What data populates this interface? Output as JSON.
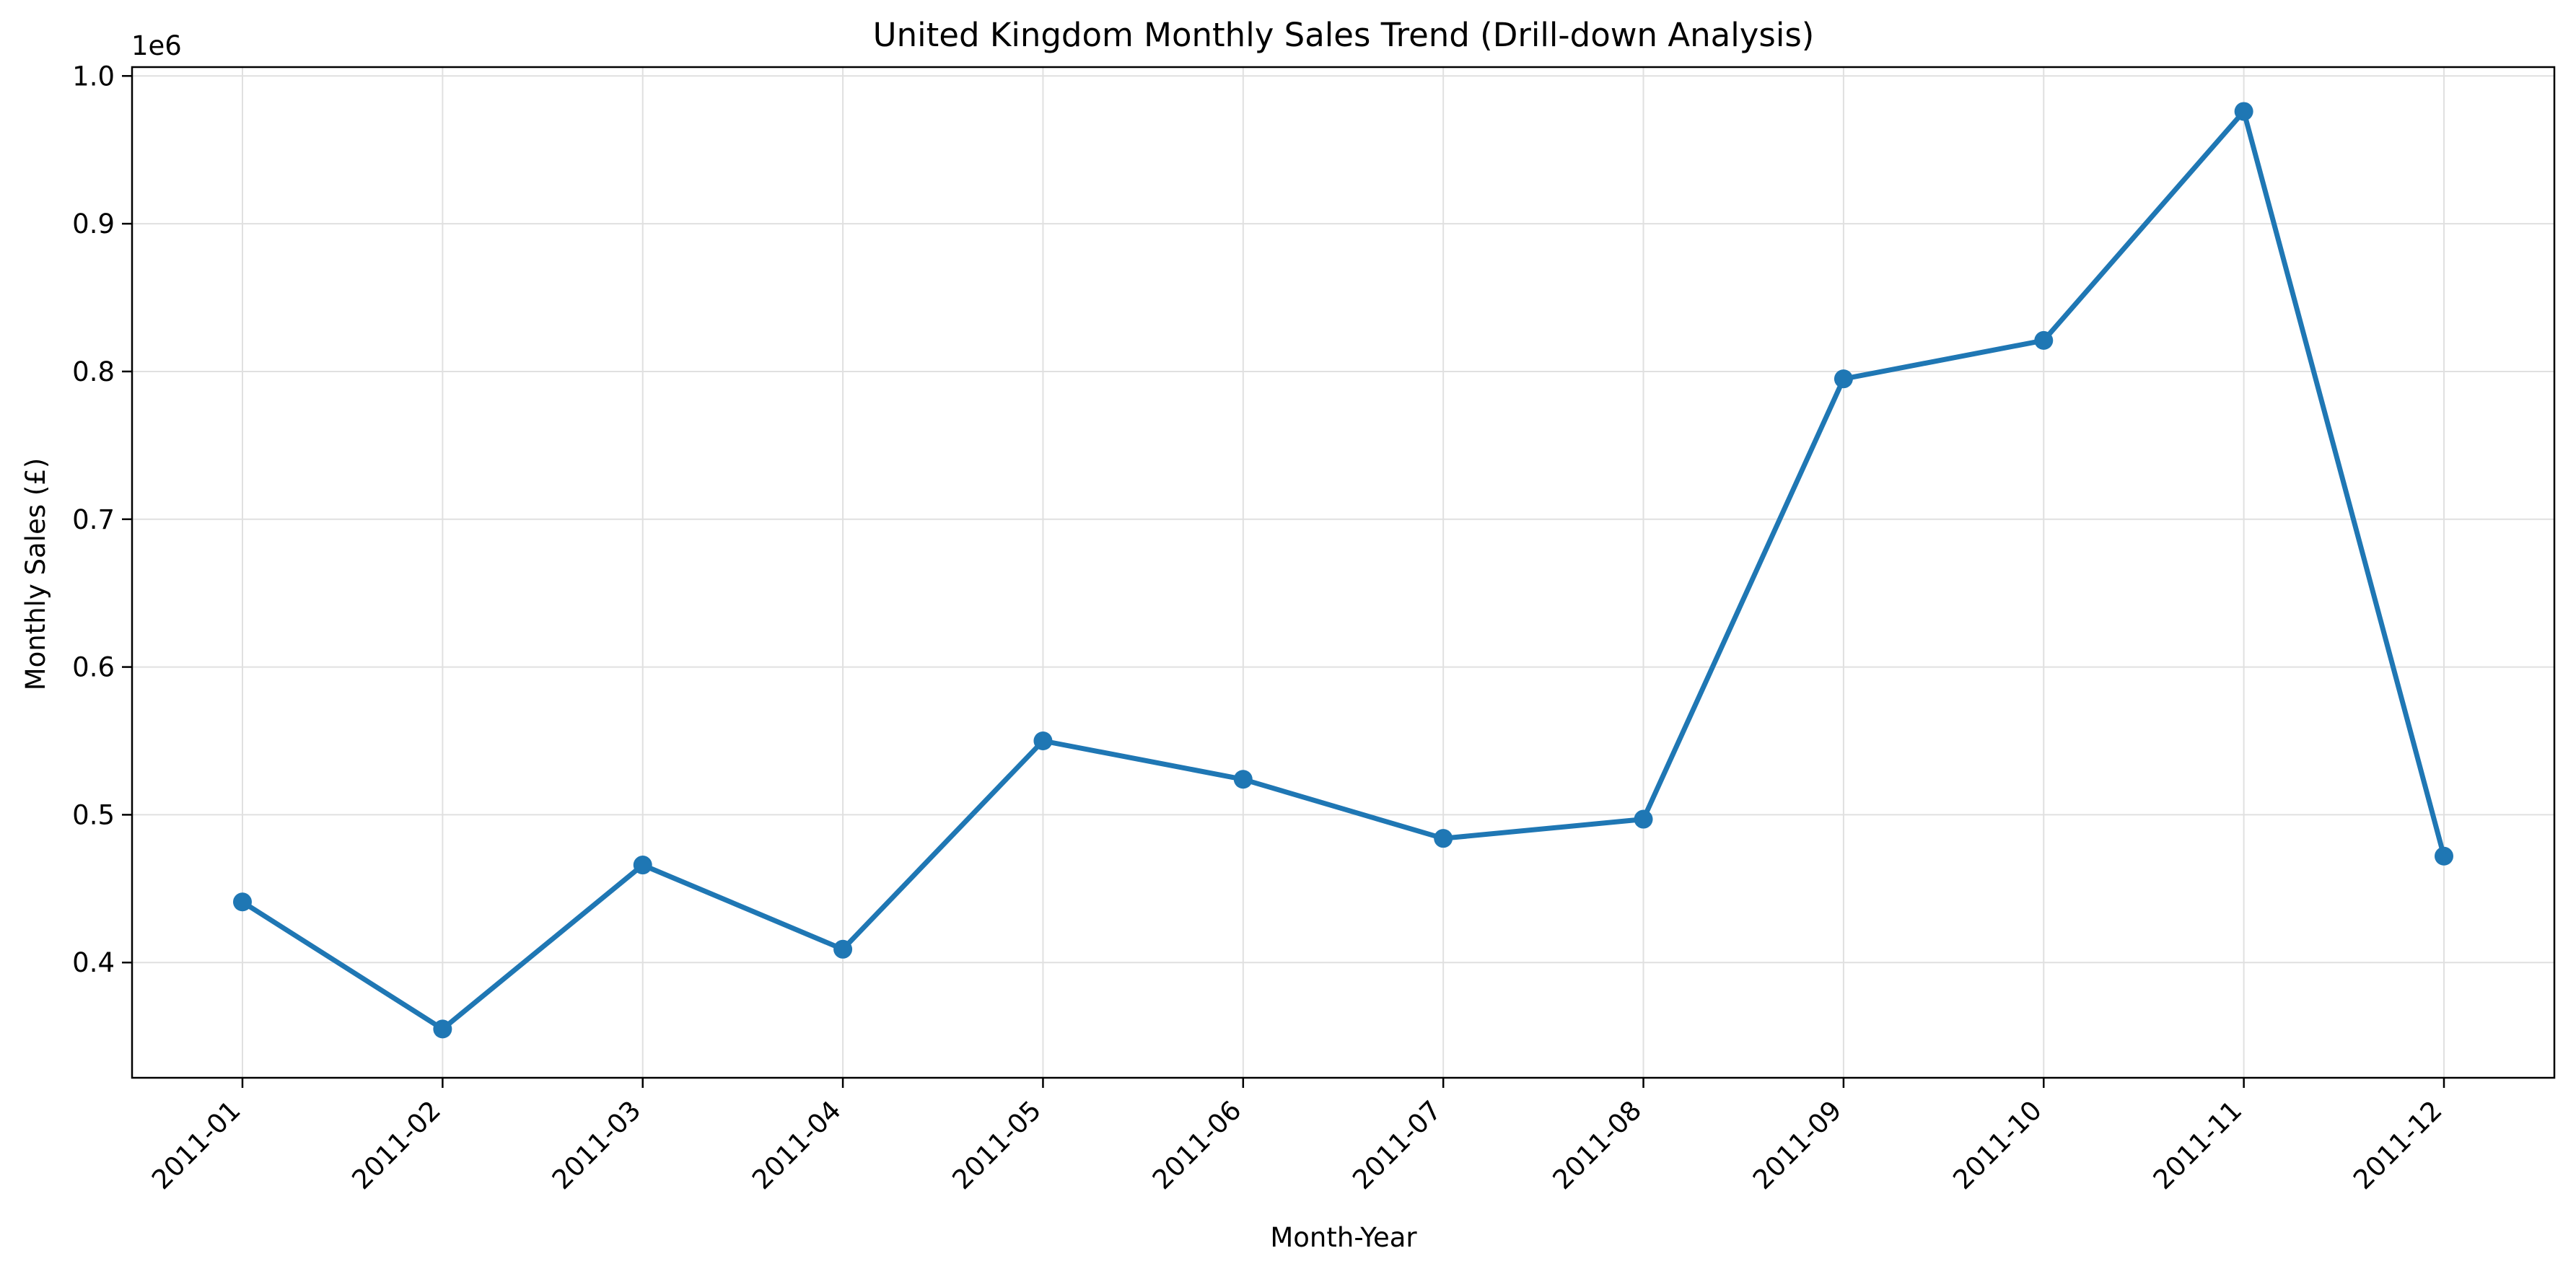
{
  "chart_data": {
    "type": "line",
    "title": "United Kingdom Monthly Sales Trend (Drill-down Analysis)",
    "xlabel": "Month-Year",
    "ylabel": "Monthly Sales (£)",
    "y_offset_label": "1e6",
    "categories": [
      "2011-01",
      "2011-02",
      "2011-03",
      "2011-04",
      "2011-05",
      "2011-06",
      "2011-07",
      "2011-08",
      "2011-09",
      "2011-10",
      "2011-11",
      "2011-12"
    ],
    "series": [
      {
        "values": [
          441000,
          355000,
          466000,
          409000,
          550000,
          524000,
          484000,
          497000,
          795000,
          821000,
          976000,
          472000
        ],
        "color": "#1f77b4",
        "marker": "circle"
      }
    ],
    "ylim": [
      322000,
      1006000
    ],
    "yticks": [
      0.4,
      0.5,
      0.6,
      0.7,
      0.8,
      0.9,
      1.0
    ],
    "ytick_labels": [
      "0.4",
      "0.5",
      "0.6",
      "0.7",
      "0.8",
      "0.9",
      "1.0"
    ],
    "grid": true,
    "grid_color": "#e0e0e0",
    "axis_color": "#000000"
  }
}
